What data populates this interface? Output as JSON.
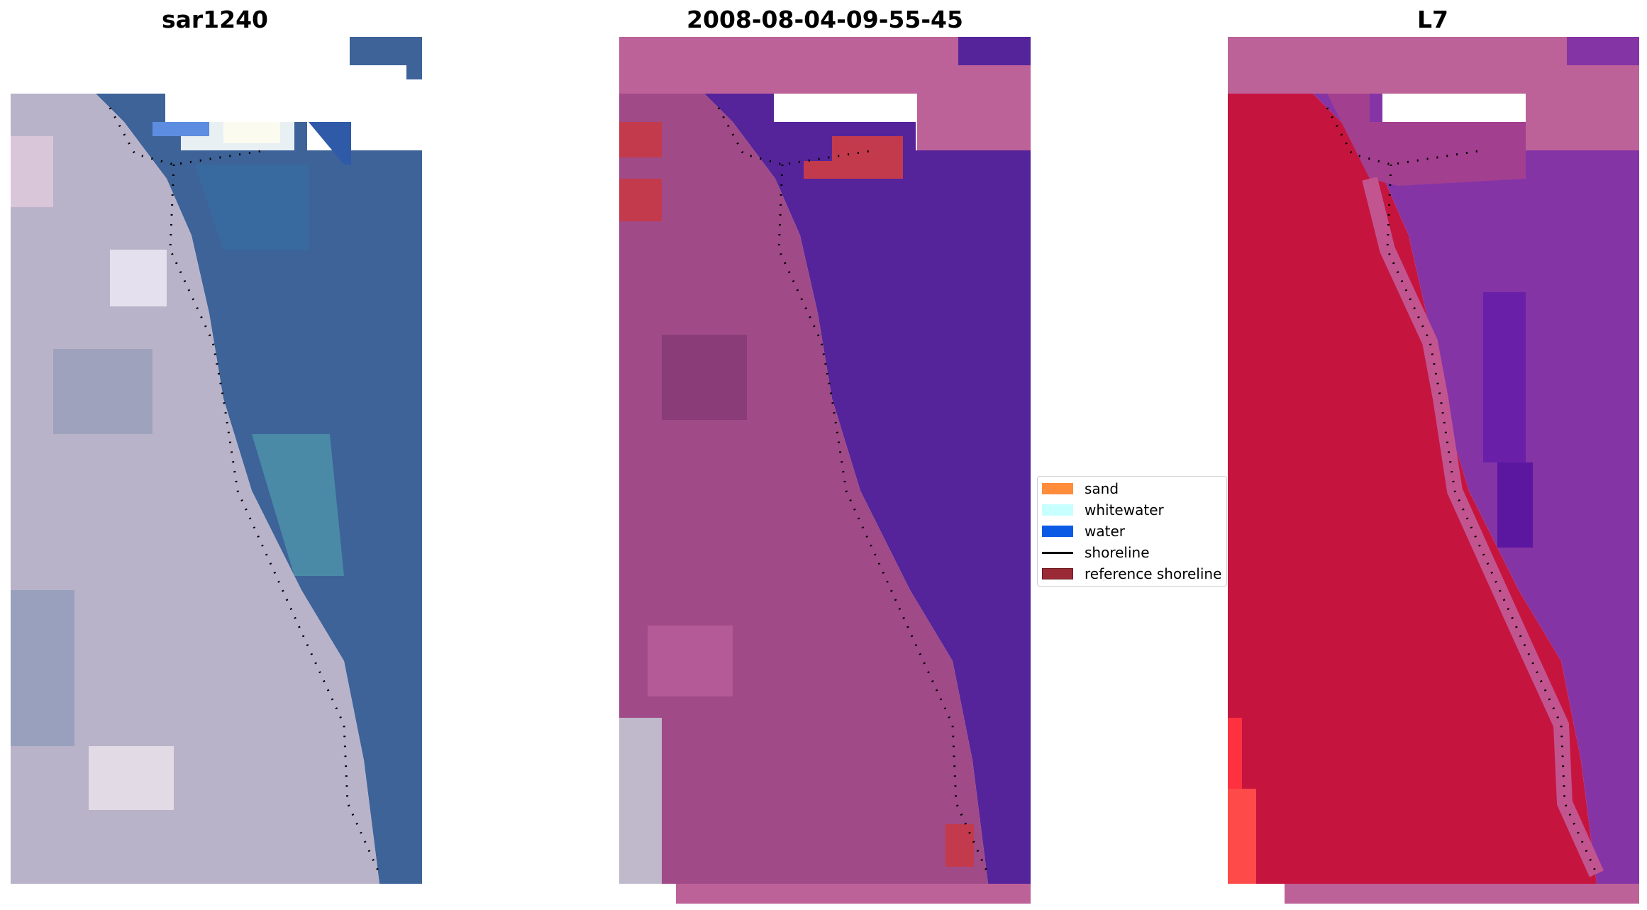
{
  "panels": [
    {
      "title": "sar1240",
      "kind": "rgb"
    },
    {
      "title": "2008-08-04-09-55-45",
      "kind": "classified"
    },
    {
      "title": "L7",
      "kind": "mndwi"
    }
  ],
  "legend": {
    "items": [
      {
        "label": "sand",
        "color": "#ff8c3a",
        "style": "patch"
      },
      {
        "label": "whitewater",
        "color": "#c8ffff",
        "style": "patch"
      },
      {
        "label": "water",
        "color": "#0b5ae6",
        "style": "patch"
      },
      {
        "label": "shoreline",
        "color": "#000000",
        "style": "line"
      },
      {
        "label": "reference shoreline",
        "color": "#9a2a35",
        "style": "patch"
      }
    ]
  },
  "colors": {
    "sea_rgb": "#3d6399",
    "land_rgb": "#b9b3c9",
    "sea_class": "#55249a",
    "land_class": "#a04a87",
    "overlay_class": "#bd6298",
    "ref_shoreline_patch": "#c33a4d",
    "land_mndwi": "#c5153f",
    "sea_mndwi": "#8534a6",
    "overlay_mndwi": "#bd6298"
  }
}
